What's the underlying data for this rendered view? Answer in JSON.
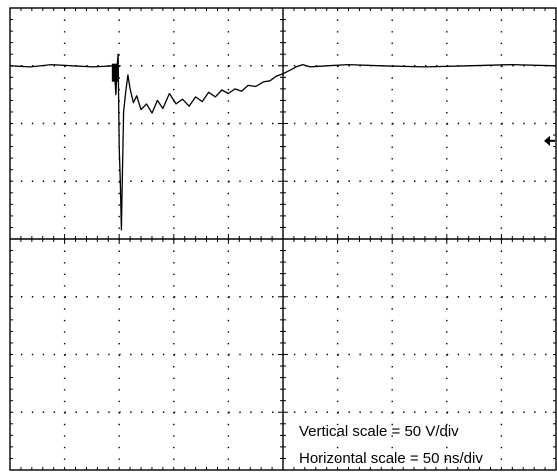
{
  "chart_data": {
    "type": "line",
    "title": "",
    "xlabel": "",
    "ylabel": "",
    "grid": true,
    "grid_divisions": {
      "x": 10,
      "y": 8
    },
    "x_unit": "ns",
    "y_unit": "V",
    "xlim": [
      0,
      500
    ],
    "ylim": [
      -200,
      200
    ],
    "series": [
      {
        "values_x": [
          0,
          19,
          38,
          57,
          76,
          95,
          96,
          97,
          98,
          99,
          100,
          101,
          102,
          103,
          104,
          106,
          108,
          110,
          113,
          116,
          120,
          125,
          130,
          135,
          140,
          146,
          152,
          158,
          164,
          170,
          176,
          182,
          188,
          194,
          200,
          206,
          212,
          218,
          225,
          232,
          238,
          244,
          250,
          256,
          262,
          268,
          275,
          290,
          310,
          340,
          380,
          420,
          460,
          500
        ],
        "values_y": [
          150,
          149,
          151,
          150,
          149,
          150,
          140,
          125,
          148,
          160,
          80,
          50,
          8,
          60,
          110,
          128,
          142,
          130,
          118,
          124,
          112,
          117,
          109,
          120,
          113,
          126,
          117,
          121,
          115,
          123,
          119,
          127,
          123,
          129,
          126,
          130,
          128,
          133,
          132,
          136,
          137,
          141,
          143,
          146,
          149,
          151,
          149,
          150,
          151,
          150,
          149,
          150,
          151,
          150
        ]
      }
    ],
    "markers": [
      {
        "name": "trigger-point",
        "x": 96,
        "y": 144
      },
      {
        "name": "ground-reference-arrow",
        "side": "right",
        "y": 85
      }
    ]
  },
  "annotations": {
    "vertical_scale": "Vertical scale = 50 V/div",
    "horizontal_scale": "Horizontal scale = 50 ns/div"
  },
  "colors": {
    "trace": "#000000",
    "grid": "#000000",
    "background": "#ffffff"
  }
}
